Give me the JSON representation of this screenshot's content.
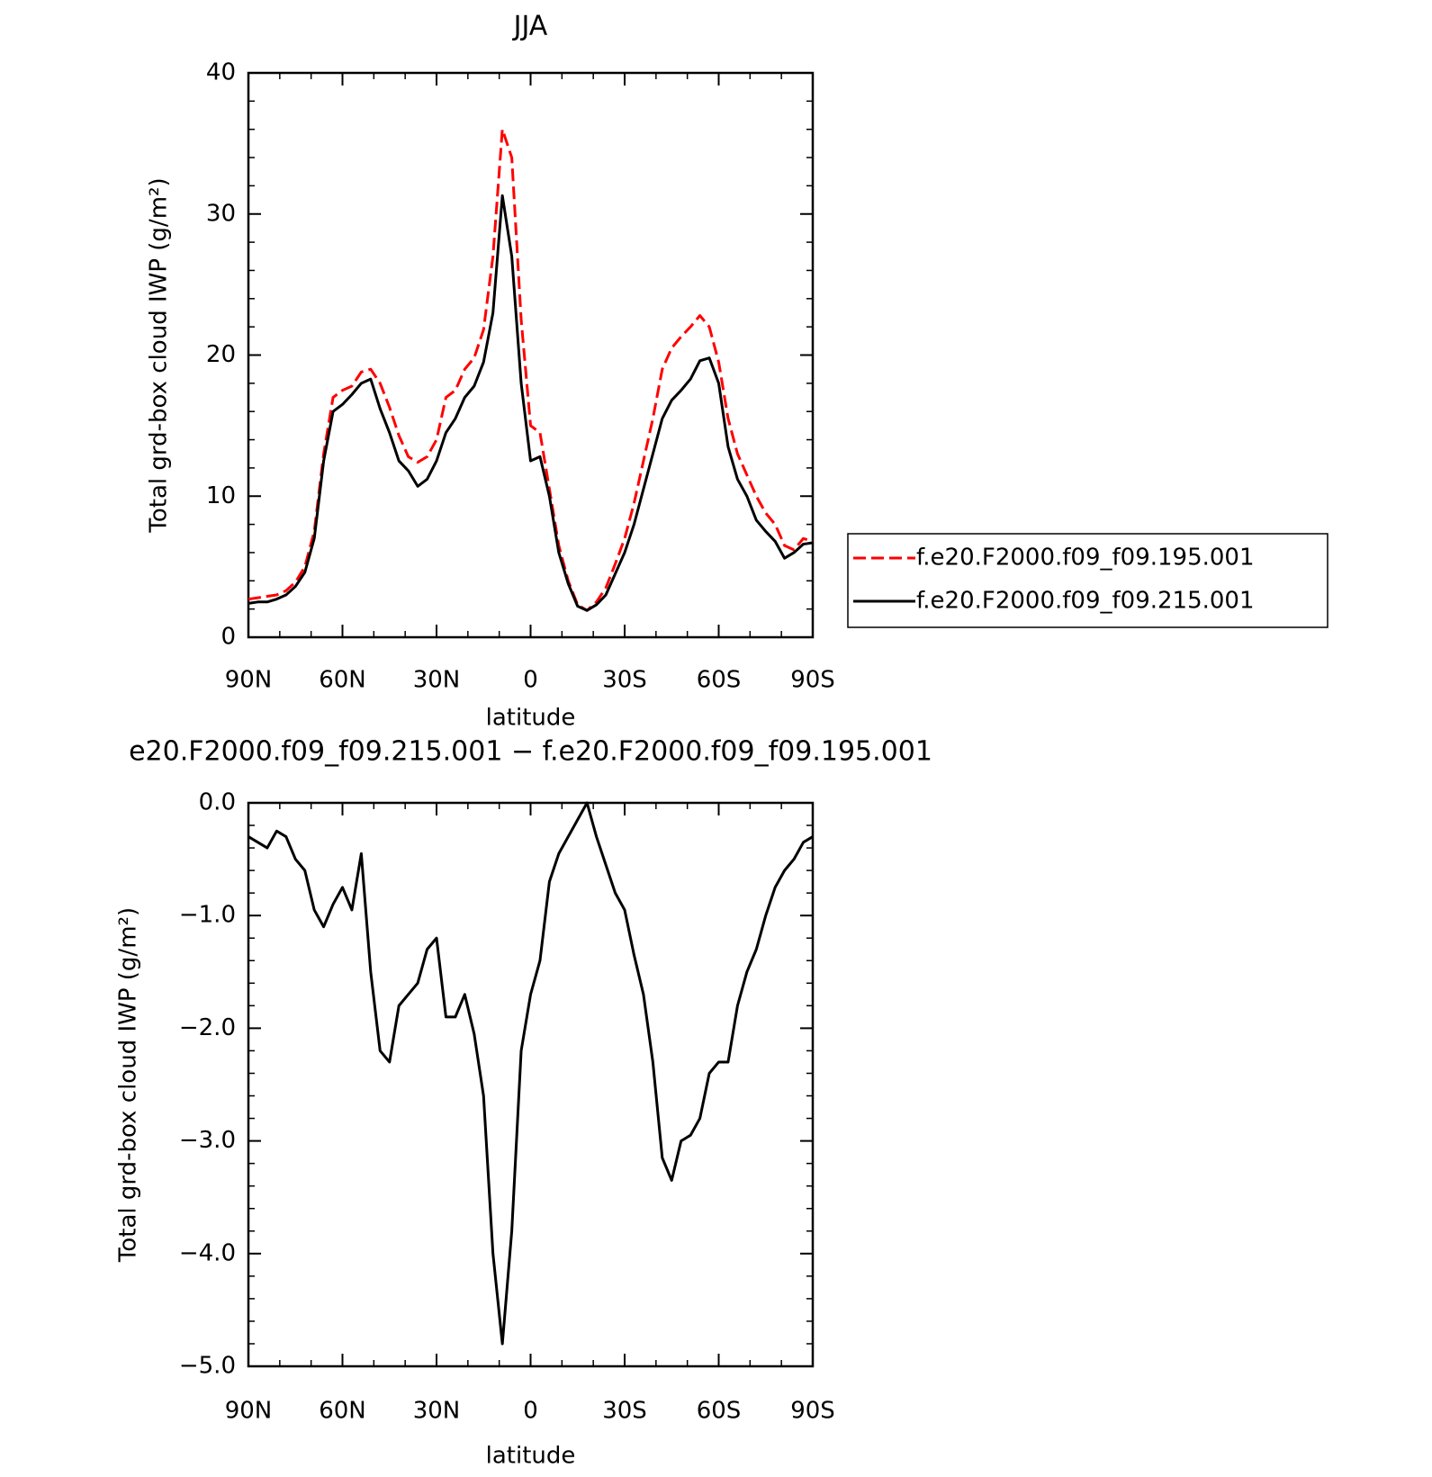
{
  "chart_data": [
    {
      "type": "line",
      "title": "JJA",
      "xlabel": "latitude",
      "ylabel": "Total grd-box cloud IWP (g/m²)",
      "x": [
        90,
        87,
        84,
        81,
        78,
        75,
        72,
        69,
        66,
        63,
        60,
        57,
        54,
        51,
        48,
        45,
        42,
        39,
        36,
        33,
        30,
        27,
        24,
        21,
        18,
        15,
        12,
        9,
        6,
        3,
        0,
        -3,
        -6,
        -9,
        -12,
        -15,
        -18,
        -21,
        -24,
        -27,
        -30,
        -33,
        -36,
        -39,
        -42,
        -45,
        -48,
        -51,
        -54,
        -57,
        -60,
        -63,
        -66,
        -69,
        -72,
        -75,
        -78,
        -81,
        -84,
        -87,
        -90
      ],
      "series": [
        {
          "name": "f.e20.F2000.f09_f09.195.001",
          "color": "#ff0000",
          "line_style": "dashed",
          "values": [
            2.7,
            2.8,
            2.9,
            3.0,
            3.3,
            3.9,
            5.0,
            7.5,
            13.0,
            17.0,
            17.5,
            17.8,
            18.8,
            19.0,
            18.0,
            16.3,
            14.3,
            12.8,
            12.4,
            12.8,
            14.0,
            17.0,
            17.5,
            19.0,
            19.8,
            21.8,
            27.0,
            36.0,
            34.0,
            22.5,
            15.0,
            14.5,
            10.5,
            6.5,
            4.0,
            2.3,
            1.9,
            2.5,
            3.5,
            5.2,
            7.0,
            9.5,
            12.5,
            15.5,
            19.0,
            20.5,
            21.3,
            22.0,
            22.8,
            22.0,
            19.5,
            15.5,
            13.0,
            11.5,
            10.0,
            8.8,
            8.0,
            6.5,
            6.2,
            7.0,
            6.8
          ]
        },
        {
          "name": "f.e20.F2000.f09_f09.215.001",
          "color": "#000000",
          "line_style": "solid",
          "values": [
            2.4,
            2.5,
            2.5,
            2.7,
            3.0,
            3.6,
            4.6,
            7.0,
            12.5,
            16.0,
            16.5,
            17.2,
            18.0,
            18.3,
            16.2,
            14.5,
            12.5,
            11.8,
            10.7,
            11.2,
            12.5,
            14.5,
            15.5,
            17.0,
            17.8,
            19.5,
            23.0,
            31.3,
            27.0,
            18.0,
            12.5,
            12.8,
            10.0,
            6.0,
            3.8,
            2.2,
            1.9,
            2.3,
            3.0,
            4.5,
            6.0,
            8.0,
            10.5,
            13.0,
            15.5,
            16.8,
            17.5,
            18.3,
            19.6,
            19.8,
            18.0,
            13.5,
            11.2,
            10.0,
            8.3,
            7.5,
            6.8,
            5.6,
            6.0,
            6.6,
            6.7
          ]
        }
      ],
      "xlim": [
        90,
        -90
      ],
      "xticks": [
        {
          "value": 90,
          "label": "90N"
        },
        {
          "value": 60,
          "label": "60N"
        },
        {
          "value": 30,
          "label": "30N"
        },
        0,
        {
          "value": -30,
          "label": "30S"
        },
        {
          "value": -60,
          "label": "60S"
        },
        {
          "value": -90,
          "label": "90S"
        }
      ],
      "ylim": [
        0,
        40
      ],
      "yticks": [
        0,
        10,
        20,
        30,
        40
      ],
      "legend": "right"
    },
    {
      "type": "line",
      "title": "e20.F2000.f09_f09.215.001 − f.e20.F2000.f09_f09.195.001",
      "xlabel": "latitude",
      "ylabel": "Total grd-box cloud IWP (g/m²)",
      "x": [
        90,
        87,
        84,
        81,
        78,
        75,
        72,
        69,
        66,
        63,
        60,
        57,
        54,
        51,
        48,
        45,
        42,
        39,
        36,
        33,
        30,
        27,
        24,
        21,
        18,
        15,
        12,
        9,
        6,
        3,
        0,
        -3,
        -6,
        -9,
        -12,
        -15,
        -18,
        -21,
        -24,
        -27,
        -30,
        -33,
        -36,
        -39,
        -42,
        -45,
        -48,
        -51,
        -54,
        -57,
        -60,
        -63,
        -66,
        -69,
        -72,
        -75,
        -78,
        -81,
        -84,
        -87,
        -90
      ],
      "series": [
        {
          "color": "#000000",
          "line_style": "solid",
          "values": [
            -0.3,
            -0.35,
            -0.4,
            -0.25,
            -0.3,
            -0.5,
            -0.6,
            -0.95,
            -1.1,
            -0.9,
            -0.75,
            -0.95,
            -0.45,
            -1.5,
            -2.2,
            -2.3,
            -1.8,
            -1.7,
            -1.6,
            -1.3,
            -1.2,
            -1.9,
            -1.9,
            -1.7,
            -2.05,
            -2.6,
            -4.0,
            -4.8,
            -3.8,
            -2.2,
            -1.7,
            -1.4,
            -0.7,
            -0.45,
            -0.3,
            -0.15,
            0,
            -0.3,
            -0.55,
            -0.8,
            -0.95,
            -1.35,
            -1.7,
            -2.3,
            -3.15,
            -3.35,
            -3.0,
            -2.95,
            -2.8,
            -2.4,
            -2.3,
            -2.3,
            -1.8,
            -1.5,
            -1.3,
            -1.0,
            -0.75,
            -0.6,
            -0.5,
            -0.35,
            -0.3
          ]
        }
      ],
      "xlim": [
        90,
        -90
      ],
      "xticks": [
        {
          "value": 90,
          "label": "90N"
        },
        {
          "value": 60,
          "label": "60N"
        },
        {
          "value": 30,
          "label": "30N"
        },
        0,
        {
          "value": -30,
          "label": "30S"
        },
        {
          "value": -60,
          "label": "60S"
        },
        {
          "value": -90,
          "label": "90S"
        }
      ],
      "ylim": [
        -5,
        0
      ],
      "yticks": [
        {
          "value": 0,
          "label": "0.0"
        },
        {
          "value": -1,
          "label": "−1.0"
        },
        {
          "value": -2,
          "label": "−2.0"
        },
        {
          "value": -3,
          "label": "−3.0"
        },
        {
          "value": -4,
          "label": "−4.0"
        },
        {
          "value": -5,
          "label": "−5.0"
        }
      ]
    }
  ]
}
